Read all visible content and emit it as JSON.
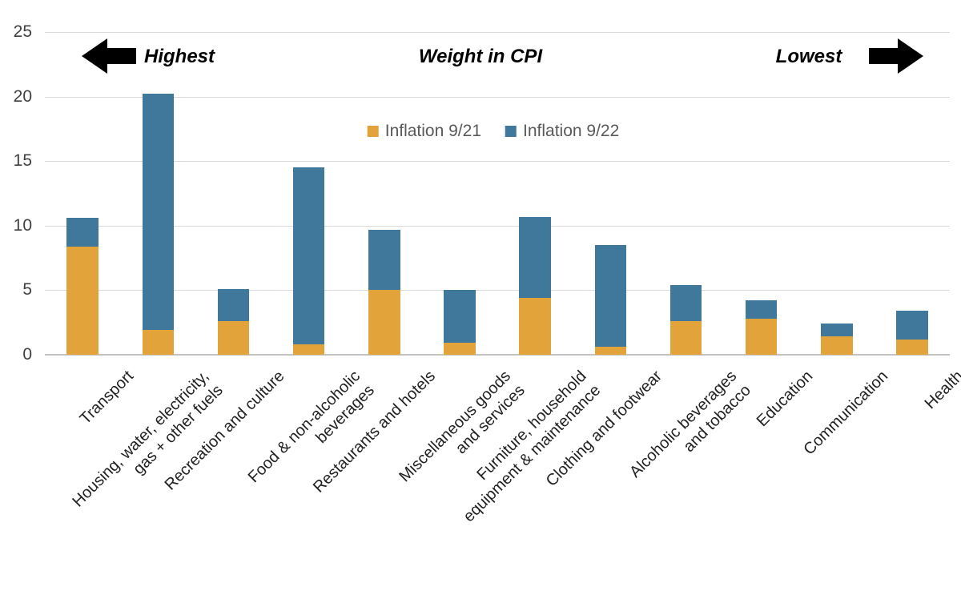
{
  "chart_data": {
    "type": "bar",
    "stacked": true,
    "annotations": {
      "left": "Highest",
      "center": "Weight in CPI",
      "right": "Lowest"
    },
    "legend_position": "top-center",
    "legend": [
      {
        "name": "Inflation 9/21",
        "color": "#E2A33B"
      },
      {
        "name": "Inflation 9/22",
        "color": "#40789C"
      }
    ],
    "categories": [
      "Transport",
      "Housing, water, electricity,\ngas + other fuels",
      "Recreation and culture",
      "Food & non-alcoholic\nbeverages",
      "Restaurants and hotels",
      "Miscellaneous goods\nand services",
      "Furniture, household\nequipment & maintenance",
      "Clothing and footwear",
      "Alcoholic beverages\nand tobacco",
      "Education",
      "Communication",
      "Health"
    ],
    "series": [
      {
        "name": "Inflation 9/21",
        "color": "#E2A33B",
        "values": [
          8.4,
          1.9,
          2.6,
          0.8,
          5.0,
          0.9,
          4.4,
          0.6,
          2.6,
          2.8,
          1.4,
          1.2
        ]
      },
      {
        "name": "Inflation 9/22",
        "color": "#40789C",
        "values": [
          2.2,
          18.3,
          2.5,
          13.7,
          4.7,
          4.1,
          6.3,
          7.9,
          2.8,
          1.4,
          1.0,
          2.2
        ]
      }
    ],
    "stack_totals": [
      10.6,
      20.2,
      5.1,
      14.5,
      9.7,
      5.0,
      10.7,
      8.5,
      5.4,
      4.2,
      2.4,
      3.4
    ],
    "y_axis": {
      "min": 0,
      "max": 25,
      "tick_step": 5,
      "ticks": [
        0,
        5,
        10,
        15,
        20,
        25
      ]
    },
    "grid": true,
    "colors": {
      "gridline": "#d9d9d9",
      "axis_line": "#c3c3c3",
      "tick_label": "#404040",
      "category_label": "#222222",
      "legend_label": "#595959",
      "annotation": "#000000"
    }
  }
}
